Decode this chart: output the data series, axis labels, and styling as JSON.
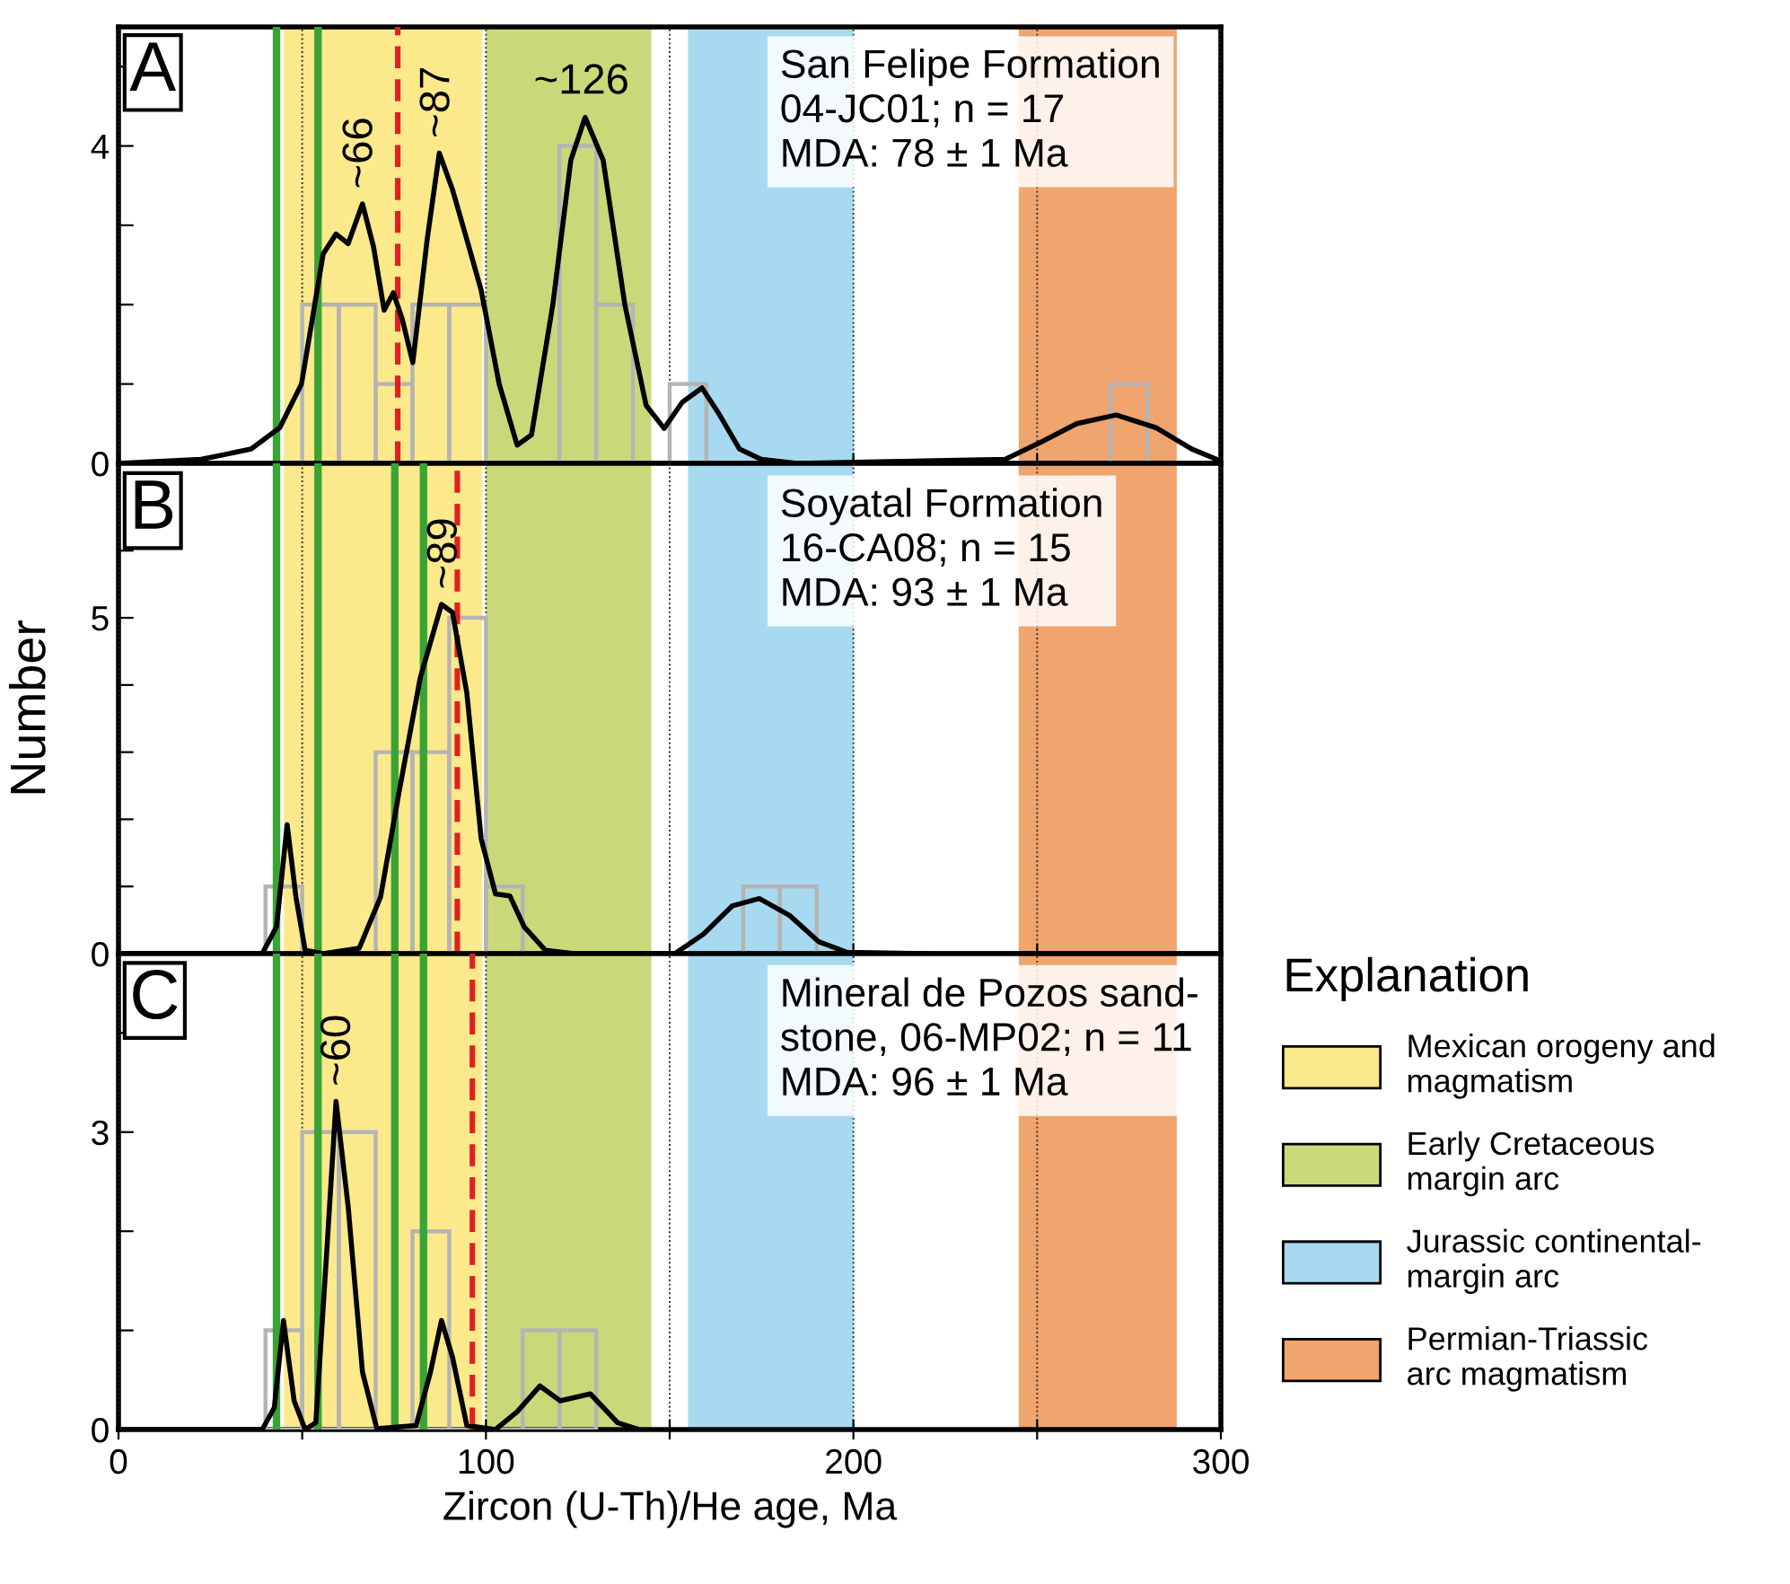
{
  "chart_data": [
    {
      "type": "histogram",
      "bins": [
        50,
        60,
        70,
        80,
        90,
        100,
        110,
        120,
        130,
        140,
        150,
        160,
        170,
        180,
        190,
        200,
        210,
        220,
        230,
        240,
        250,
        260,
        270,
        280
      ],
      "values": [
        2,
        2,
        1,
        2,
        2,
        0,
        0,
        4,
        2,
        0,
        1,
        0,
        0,
        0,
        0,
        0,
        0,
        0,
        0,
        0,
        0,
        0,
        1
      ],
      "color": "#b4b4b4",
      "series": [
        {
          "type": "line",
          "color": "#000000",
          "x": [
            0,
            22.5,
            36.1,
            43.9,
            49.8,
            55.7,
            59.2,
            62.5,
            66.4,
            69.4,
            72.3,
            74.8,
            77.2,
            80.1,
            84.0,
            87.3,
            90.9,
            94.8,
            98.7,
            103.6,
            108.5,
            112.4,
            118.2,
            123.1,
            127.0,
            131.9,
            137.8,
            143.6,
            148.5,
            153.4,
            158.8,
            163.2,
            169.0,
            174.9,
            184.6,
            241.3,
            251.1,
            260.8,
            271.5,
            282.3,
            292.1,
            298.9
          ],
          "values": [
            0,
            0.05,
            0.18,
            0.45,
            1.0,
            2.64,
            2.89,
            2.77,
            3.27,
            2.73,
            1.93,
            2.15,
            1.82,
            1.27,
            2.82,
            3.91,
            3.45,
            2.82,
            2.18,
            1.0,
            0.23,
            0.36,
            2.0,
            3.82,
            4.36,
            3.82,
            2.0,
            0.73,
            0.44,
            0.77,
            0.95,
            0.64,
            0.18,
            0.05,
            0,
            0.05,
            0.27,
            0.5,
            0.61,
            0.45,
            0.18,
            0.05
          ]
        }
      ],
      "xlim": [
        0,
        300
      ],
      "xticks": [
        {
          "value": 0,
          "label": null
        },
        {
          "value": 50,
          "label": null
        },
        {
          "value": 100,
          "label": null
        },
        {
          "value": 150,
          "label": null
        },
        {
          "value": 200,
          "label": null
        },
        {
          "value": 250,
          "label": null
        },
        {
          "value": 300,
          "label": null
        }
      ],
      "ylim": [
        0,
        5.5
      ],
      "yticks": [
        0,
        {
          "value": 1,
          "label": null
        },
        {
          "value": 2,
          "label": null
        },
        {
          "value": 3,
          "label": null
        },
        4,
        {
          "value": 5,
          "label": null
        }
      ],
      "tick_labels": "y",
      "grid": "x",
      "bands": [
        {
          "axis": "x",
          "from": 45,
          "to": 99,
          "color": "#fbe98c"
        },
        {
          "axis": "x",
          "from": 100,
          "to": 145,
          "color": "#c9d97a"
        },
        {
          "axis": "x",
          "from": 155,
          "to": 200,
          "color": "#a7daf0"
        },
        {
          "axis": "x",
          "from": 245,
          "to": 288,
          "color": "#f0a46e"
        }
      ],
      "ref_lines": [
        {
          "axis": "x",
          "value": 43,
          "color": "#3aa335",
          "line_style": "solid"
        },
        {
          "axis": "x",
          "value": 54.3,
          "color": "#3aa335",
          "line_style": "solid"
        },
        {
          "axis": "x",
          "value": 76,
          "color": "#e02020",
          "line_style": "dashed"
        }
      ],
      "annotations": [
        "A",
        "San Felipe Formation\n04-JC01; n = 17\nMDA: 78 ± 1 Ma",
        {
          "text": "~66",
          "x": 66,
          "y": 3.27
        },
        {
          "text": "~87",
          "x": 87,
          "y": 3.91
        },
        {
          "text": "~126",
          "x": 126,
          "y": 4.36
        }
      ]
    },
    {
      "type": "histogram",
      "bins": [
        40,
        50,
        60,
        70,
        80,
        90,
        100,
        110,
        120,
        130,
        140,
        150,
        160,
        170,
        180,
        190
      ],
      "values": [
        1,
        0,
        0,
        3,
        3,
        5,
        1,
        0,
        0,
        0,
        0,
        0,
        0,
        1,
        1
      ],
      "color": "#b4b4b4",
      "series": [
        {
          "type": "line",
          "color": "#000000",
          "x": [
            0,
            39.1,
            43.0,
            45.9,
            48.3,
            50.8,
            55.7,
            65.5,
            71.3,
            76.2,
            82.1,
            87.9,
            90.9,
            94.8,
            98.7,
            102.6,
            106.5,
            110.4,
            116.2,
            124.0,
            151.4,
            159.2,
            167.0,
            174.4,
            182.6,
            190.5,
            198.3,
            219.8
          ],
          "values": [
            0,
            0,
            0.4,
            1.92,
            0.84,
            0.05,
            0,
            0.08,
            0.84,
            2.36,
            4.1,
            5.2,
            5.08,
            3.88,
            1.71,
            0.89,
            0.86,
            0.4,
            0.05,
            0,
            0,
            0.29,
            0.71,
            0.82,
            0.57,
            0.18,
            0.02,
            0
          ]
        }
      ],
      "xlim": [
        0,
        300
      ],
      "xticks": [
        {
          "value": 0,
          "label": null
        },
        {
          "value": 50,
          "label": null
        },
        {
          "value": 100,
          "label": null
        },
        {
          "value": 150,
          "label": null
        },
        {
          "value": 200,
          "label": null
        },
        {
          "value": 250,
          "label": null
        },
        {
          "value": 300,
          "label": null
        }
      ],
      "ylim": [
        0,
        7.3
      ],
      "yticks": [
        0,
        {
          "value": 1,
          "label": null
        },
        {
          "value": 2,
          "label": null
        },
        {
          "value": 3,
          "label": null
        },
        {
          "value": 4,
          "label": null
        },
        5,
        {
          "value": 6,
          "label": null
        }
      ],
      "tick_labels": "y",
      "grid": "x",
      "ylabel": "Number",
      "legend": "right",
      "legend_title": "Explanation",
      "bands": [
        {
          "axis": "x",
          "from": 45,
          "to": 99,
          "color": "#fbe98c",
          "label": "Mexican orogeny and\nmagmatism"
        },
        {
          "axis": "x",
          "from": 100,
          "to": 145,
          "color": "#c9d97a",
          "label": "Early Cretaceous\nmargin arc"
        },
        {
          "axis": "x",
          "from": 155,
          "to": 200,
          "color": "#a7daf0",
          "label": "Jurassic continental-\nmargin arc"
        },
        {
          "axis": "x",
          "from": 245,
          "to": 288,
          "color": "#f0a46e",
          "label": "Permian-Triassic\narc magmatism"
        }
      ],
      "ref_lines": [
        {
          "axis": "x",
          "value": 43,
          "color": "#3aa335",
          "line_style": "solid"
        },
        {
          "axis": "x",
          "value": 54.3,
          "color": "#3aa335",
          "line_style": "solid"
        },
        {
          "axis": "x",
          "value": 75.2,
          "color": "#3aa335",
          "line_style": "solid"
        },
        {
          "axis": "x",
          "value": 83,
          "color": "#3aa335",
          "line_style": "solid"
        },
        {
          "axis": "x",
          "value": 92.2,
          "color": "#e02020",
          "line_style": "dashed"
        }
      ],
      "annotations": [
        "B",
        "Soyatal Formation\n16-CA08; n = 15\nMDA: 93 ± 1 Ma",
        {
          "text": "~89",
          "x": 89,
          "y": 5.2
        }
      ]
    },
    {
      "type": "histogram",
      "bins": [
        40,
        50,
        60,
        70,
        80,
        90,
        100,
        110,
        120,
        130
      ],
      "values": [
        1,
        3,
        3,
        0,
        2,
        0,
        0,
        1,
        1
      ],
      "color": "#b4b4b4",
      "series": [
        {
          "type": "line",
          "color": "#000000",
          "x": [
            0,
            39.1,
            42.4,
            44.9,
            47.8,
            50.8,
            53.7,
            56.6,
            59.2,
            62.5,
            66.4,
            70.3,
            81.0,
            84.9,
            87.9,
            90.9,
            94.8,
            102.6,
            108.5,
            114.7,
            120.2,
            128.4,
            135.8,
            141.7
          ],
          "values": [
            0,
            0,
            0.22,
            1.1,
            0.29,
            0,
            0.07,
            1.75,
            3.31,
            2.25,
            0.58,
            0.01,
            0.04,
            0.58,
            1.1,
            0.73,
            0.04,
            0,
            0.18,
            0.44,
            0.29,
            0.36,
            0.07,
            0
          ]
        }
      ],
      "xlim": [
        0,
        300
      ],
      "xticks": [
        0,
        {
          "value": 50,
          "label": null
        },
        100,
        {
          "value": 150,
          "label": null
        },
        200,
        {
          "value": 250,
          "label": null
        },
        300
      ],
      "ylim": [
        0,
        4.8
      ],
      "yticks": [
        0,
        {
          "value": 1,
          "label": null
        },
        {
          "value": 2,
          "label": null
        },
        3,
        {
          "value": 4,
          "label": null
        }
      ],
      "grid": "x",
      "xlabel": "Zircon (U-Th)/He age, Ma",
      "bands": [
        {
          "axis": "x",
          "from": 45,
          "to": 99,
          "color": "#fbe98c"
        },
        {
          "axis": "x",
          "from": 100,
          "to": 145,
          "color": "#c9d97a"
        },
        {
          "axis": "x",
          "from": 155,
          "to": 200,
          "color": "#a7daf0"
        },
        {
          "axis": "x",
          "from": 245,
          "to": 288,
          "color": "#f0a46e"
        }
      ],
      "ref_lines": [
        {
          "axis": "x",
          "value": 43,
          "color": "#3aa335",
          "line_style": "solid"
        },
        {
          "axis": "x",
          "value": 54.3,
          "color": "#3aa335",
          "line_style": "solid"
        },
        {
          "axis": "x",
          "value": 75.2,
          "color": "#3aa335",
          "line_style": "solid"
        },
        {
          "axis": "x",
          "value": 83,
          "color": "#3aa335",
          "line_style": "solid"
        },
        {
          "axis": "x",
          "value": 96.3,
          "color": "#e02020",
          "line_style": "dashed"
        }
      ],
      "annotations": [
        "C",
        "Mineral de Pozos sand-\nstone, 06-MP02; n = 11\nMDA: 96 ± 1 Ma",
        {
          "text": "~60",
          "x": 60,
          "y": 3.31
        }
      ]
    }
  ]
}
